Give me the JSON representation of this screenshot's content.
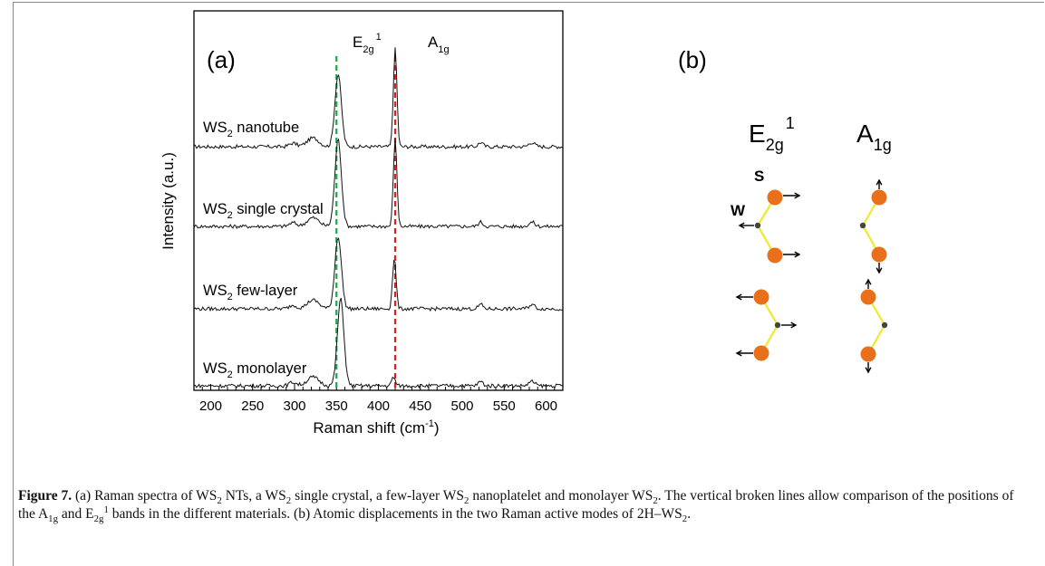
{
  "figure": {
    "panel_a_label": "(a)",
    "panel_b_label": "(b)",
    "xlabel_main": "Raman shift (cm",
    "xlabel_sup": "-1",
    "xlabel_tail": ")",
    "ylabel": "Intensity (a.u.)",
    "peak_e": {
      "base": "E",
      "sub": "2g",
      "sup": "1"
    },
    "peak_a": {
      "base": "A",
      "sub": "1g"
    },
    "traces": [
      {
        "prefix": "WS",
        "sub": "2",
        "label": " nanotube"
      },
      {
        "prefix": "WS",
        "sub": "2",
        "label": " single crystal"
      },
      {
        "prefix": "WS",
        "sub": "2",
        "label": " few-layer"
      },
      {
        "prefix": "WS",
        "sub": "2",
        "label": " monolayer"
      }
    ],
    "modes": {
      "e_mode": {
        "base": "E",
        "sub": "2g",
        "sup": "1"
      },
      "a_mode": {
        "base": "A",
        "sub": "1g"
      },
      "atom_s": "S",
      "atom_w": "W"
    },
    "colors": {
      "green_line": "#1aa64a",
      "red_line": "#e02020",
      "sulfur": "#e8701a",
      "bond": "#f2e82a",
      "tungsten": "#444444"
    }
  },
  "chart_data": {
    "type": "line",
    "xlabel": "Raman shift (cm-1)",
    "ylabel": "Intensity (a.u.)",
    "xlim": [
      180,
      620
    ],
    "xticks": [
      200,
      250,
      300,
      350,
      400,
      450,
      500,
      550,
      600
    ],
    "reference_lines": [
      {
        "label": "E2g1",
        "x": 350,
        "color": "#1aa64a"
      },
      {
        "label": "A1g",
        "x": 420,
        "color": "#e02020"
      }
    ],
    "series": [
      {
        "name": "WS2 nanotube",
        "peaks": [
          {
            "x": 352,
            "height": 1.0
          },
          {
            "x": 420,
            "height": 1.35
          }
        ]
      },
      {
        "name": "WS2 single crystal",
        "peaks": [
          {
            "x": 352,
            "height": 1.2
          },
          {
            "x": 420,
            "height": 1.2
          }
        ]
      },
      {
        "name": "WS2 few-layer",
        "peaks": [
          {
            "x": 352,
            "height": 1.0
          },
          {
            "x": 419,
            "height": 0.7
          }
        ]
      },
      {
        "name": "WS2 monolayer",
        "peaks": [
          {
            "x": 355,
            "height": 1.2
          },
          {
            "x": 418,
            "height": 0.12
          }
        ]
      }
    ]
  },
  "caption": {
    "fig_label": "Figure 7.",
    "p1": " (a) Raman spectra of WS",
    "p2": " NTs, a WS",
    "p3": " single crystal, a few-layer WS",
    "p4": " nanoplatelet and monolayer WS",
    "p5": ". The vertical broken lines allow comparison of the positions of the A",
    "p6": " and  E",
    "p7": " bands in the different materials. (b) Atomic displacements in the two Raman active modes of 2H–WS",
    "p8": ".",
    "sub2": "2",
    "sub1g": "1g",
    "sub2g": "2g",
    "sup1": "1"
  }
}
